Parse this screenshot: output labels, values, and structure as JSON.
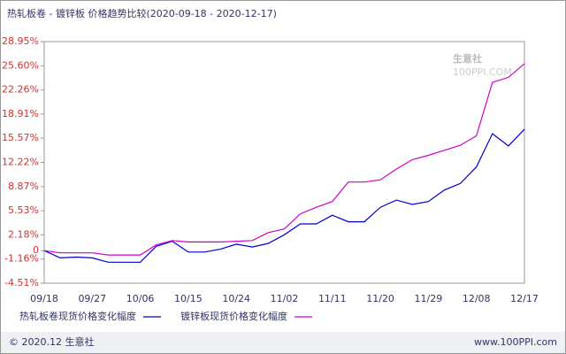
{
  "chart_data": {
    "type": "line",
    "title": "热轧板卷 - 镀锌板 价格趋势比较(2020-09-18 - 2020-12-17)",
    "watermark": "生意社",
    "watermark_sub": "100PPI.COM",
    "categories": [
      "09/18",
      null,
      null,
      "09/27",
      null,
      null,
      "10/06",
      null,
      null,
      "10/15",
      null,
      null,
      "10/24",
      null,
      null,
      "11/02",
      null,
      null,
      "11/11",
      null,
      null,
      "11/20",
      null,
      null,
      "11/29",
      null,
      null,
      "12/08",
      null,
      null,
      "12/17"
    ],
    "series": [
      {
        "name": "热轧板卷现货价格变化幅度",
        "color": "#0000cc",
        "values": [
          0,
          -1.0,
          -0.9,
          -1.0,
          -1.6,
          -1.6,
          -1.6,
          0.6,
          1.3,
          -0.2,
          -0.2,
          0.2,
          0.9,
          0.5,
          1.0,
          2.2,
          3.7,
          3.7,
          4.9,
          4.0,
          4.0,
          6.0,
          7.0,
          6.4,
          6.8,
          8.4,
          9.3,
          11.6,
          16.2,
          14.5,
          16.8
        ]
      },
      {
        "name": "镀锌板现货价格变化幅度",
        "color": "#cc00cc",
        "values": [
          0,
          -0.3,
          -0.3,
          -0.3,
          -0.6,
          -0.6,
          -0.6,
          0.8,
          1.4,
          1.2,
          1.2,
          1.2,
          1.3,
          1.4,
          2.5,
          3.0,
          5.1,
          6.0,
          6.8,
          9.5,
          9.5,
          9.8,
          11.3,
          12.6,
          13.2,
          13.9,
          14.6,
          15.9,
          23.3,
          24.0,
          25.9
        ]
      }
    ],
    "ylim": [
      -4.51,
      28.95
    ],
    "yticks": [
      {
        "value": 28.95,
        "label": "28.95%"
      },
      {
        "value": 25.6,
        "label": "25.60%"
      },
      {
        "value": 22.26,
        "label": "22.26%"
      },
      {
        "value": 18.91,
        "label": "18.91%"
      },
      {
        "value": 15.57,
        "label": "15.57%"
      },
      {
        "value": 12.22,
        "label": "12.22%"
      },
      {
        "value": 8.87,
        "label": "8.87%"
      },
      {
        "value": 5.53,
        "label": "5.53%"
      },
      {
        "value": 2.18,
        "label": "2.18%"
      },
      0,
      {
        "value": -1.16,
        "label": "-1.16%"
      },
      {
        "value": -4.51,
        "label": "-4.51%"
      }
    ],
    "grid": false,
    "footer_left": "© 2020.12 生意社",
    "footer_right": "www.100PPI.com"
  }
}
